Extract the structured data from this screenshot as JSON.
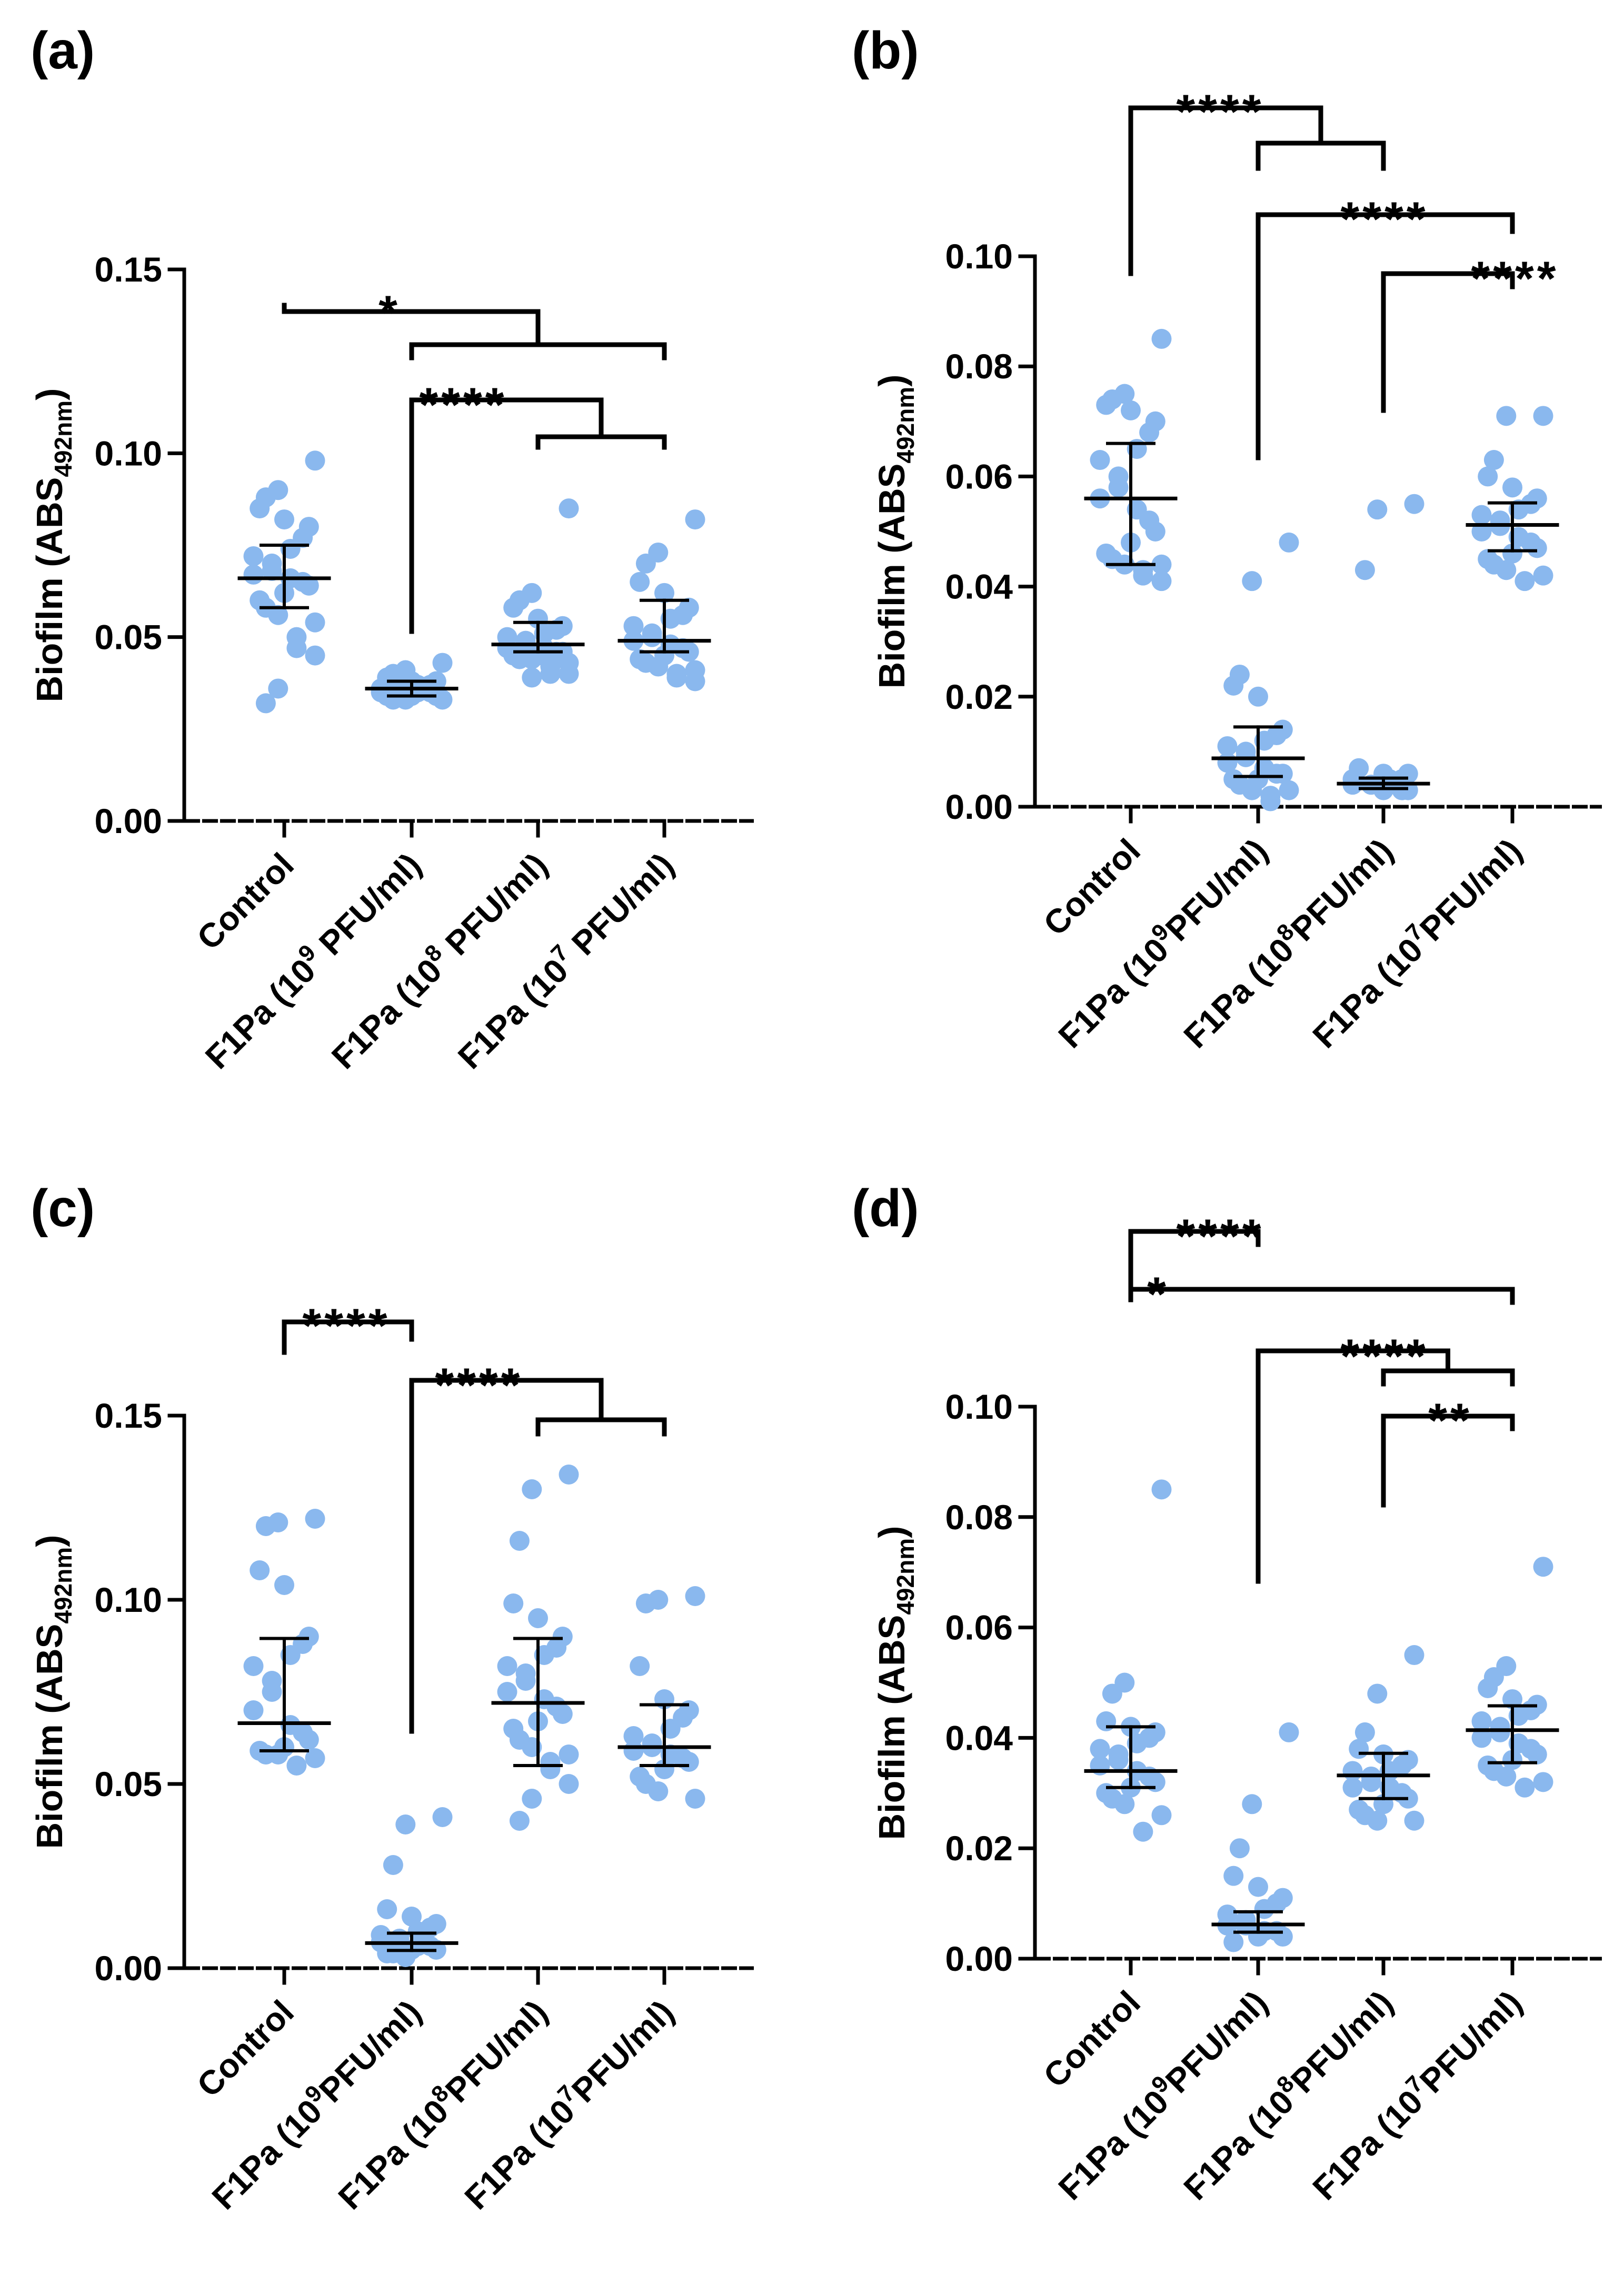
{
  "figure": {
    "panel_count": 4
  },
  "style": {
    "point_color": "#8ab8ee",
    "line_color": "#000000"
  },
  "chart_data": [
    {
      "type": "scatter",
      "panel_label": "(a)",
      "ylabel_main": "Biofilm (ABS",
      "ylabel_sub": "492nm",
      "ylabel_close": ")",
      "ylim": [
        0,
        0.15
      ],
      "yticks": [
        0,
        0.05,
        0.1,
        0.15
      ],
      "ytick_labels": [
        "0.00",
        "0.05",
        "0.10",
        "0.15"
      ],
      "categories": [
        {
          "pre": "Control",
          "sup": "",
          "post": ""
        },
        {
          "pre": "F1Pa (10",
          "sup": "9",
          "post": " PFU/ml)"
        },
        {
          "pre": "F1Pa (10",
          "sup": "8",
          "post": " PFU/ml)"
        },
        {
          "pre": "F1Pa (10",
          "sup": "7",
          "post": " PFU/ml)"
        }
      ],
      "groups": [
        {
          "values": [
            0.098,
            0.09,
            0.088,
            0.085,
            0.082,
            0.08,
            0.077,
            0.074,
            0.072,
            0.07,
            0.068,
            0.067,
            0.066,
            0.065,
            0.064,
            0.062,
            0.06,
            0.058,
            0.056,
            0.054,
            0.05,
            0.047,
            0.045,
            0.036,
            0.032
          ],
          "mean": 0.066,
          "err_low": 0.058,
          "err_high": 0.075
        },
        {
          "values": [
            0.043,
            0.041,
            0.04,
            0.039,
            0.038,
            0.038,
            0.037,
            0.037,
            0.036,
            0.036,
            0.036,
            0.035,
            0.035,
            0.035,
            0.034,
            0.034,
            0.034,
            0.033,
            0.033,
            0.033
          ],
          "mean": 0.036,
          "err_low": 0.034,
          "err_high": 0.038
        },
        {
          "values": [
            0.085,
            0.062,
            0.06,
            0.058,
            0.055,
            0.053,
            0.052,
            0.051,
            0.05,
            0.049,
            0.048,
            0.047,
            0.047,
            0.046,
            0.046,
            0.045,
            0.045,
            0.044,
            0.044,
            0.043,
            0.042,
            0.04,
            0.04,
            0.039
          ],
          "mean": 0.048,
          "err_low": 0.046,
          "err_high": 0.054
        },
        {
          "values": [
            0.082,
            0.073,
            0.07,
            0.065,
            0.062,
            0.058,
            0.056,
            0.055,
            0.053,
            0.051,
            0.05,
            0.049,
            0.048,
            0.047,
            0.046,
            0.045,
            0.044,
            0.043,
            0.042,
            0.041,
            0.04,
            0.039,
            0.038
          ],
          "mean": 0.049,
          "err_low": 0.046,
          "err_high": 0.06
        }
      ],
      "brackets": [
        {
          "from": 0,
          "to_pair": [
            1,
            3
          ],
          "label": "*"
        },
        {
          "from": 1,
          "to_pair": [
            2,
            3
          ],
          "label": "****"
        }
      ]
    },
    {
      "type": "scatter",
      "panel_label": "(b)",
      "ylabel_main": "Biofilm (ABS",
      "ylabel_sub": "492nm",
      "ylabel_close": ")",
      "ylim": [
        0,
        0.1
      ],
      "yticks": [
        0,
        0.02,
        0.04,
        0.06,
        0.08,
        0.1
      ],
      "ytick_labels": [
        "0.00",
        "0.02",
        "0.04",
        "0.06",
        "0.08",
        "0.10"
      ],
      "categories": [
        {
          "pre": "Control",
          "sup": "",
          "post": ""
        },
        {
          "pre": "F1Pa (10",
          "sup": "9",
          "post": "PFU/ml)"
        },
        {
          "pre": "F1Pa (10",
          "sup": "8",
          "post": "PFU/ml)"
        },
        {
          "pre": "F1Pa (10",
          "sup": "7",
          "post": "PFU/ml)"
        }
      ],
      "groups": [
        {
          "values": [
            0.085,
            0.075,
            0.074,
            0.073,
            0.072,
            0.07,
            0.068,
            0.065,
            0.063,
            0.06,
            0.058,
            0.056,
            0.054,
            0.052,
            0.05,
            0.048,
            0.046,
            0.045,
            0.044,
            0.044,
            0.043,
            0.042,
            0.041
          ],
          "mean": 0.056,
          "err_low": 0.044,
          "err_high": 0.066
        },
        {
          "values": [
            0.048,
            0.041,
            0.024,
            0.022,
            0.02,
            0.014,
            0.013,
            0.012,
            0.011,
            0.01,
            0.009,
            0.008,
            0.007,
            0.006,
            0.006,
            0.005,
            0.005,
            0.004,
            0.003,
            0.003,
            0.002,
            0.001
          ],
          "mean": 0.0088,
          "err_low": 0.0055,
          "err_high": 0.0145
        },
        {
          "values": [
            0.055,
            0.054,
            0.043,
            0.007,
            0.006,
            0.006,
            0.005,
            0.005,
            0.005,
            0.004,
            0.004,
            0.004,
            0.004,
            0.003,
            0.003,
            0.003
          ],
          "mean": 0.0042,
          "err_low": 0.0033,
          "err_high": 0.0052
        },
        {
          "values": [
            0.071,
            0.071,
            0.063,
            0.06,
            0.058,
            0.056,
            0.055,
            0.054,
            0.053,
            0.052,
            0.051,
            0.05,
            0.049,
            0.048,
            0.047,
            0.046,
            0.045,
            0.044,
            0.043,
            0.042,
            0.041
          ],
          "mean": 0.0512,
          "err_low": 0.0465,
          "err_high": 0.0552
        }
      ],
      "brackets": [
        {
          "from": 0,
          "to_pair": [
            1,
            2
          ],
          "label": "****"
        },
        {
          "from": 1,
          "to_single": 3,
          "label": "****"
        },
        {
          "from": 2,
          "to_single": 3,
          "label": "****"
        }
      ]
    },
    {
      "type": "scatter",
      "panel_label": "(c)",
      "ylabel_main": "Biofilm (ABS",
      "ylabel_sub": "492nm",
      "ylabel_close": ")",
      "ylim": [
        0,
        0.15
      ],
      "yticks": [
        0,
        0.05,
        0.1,
        0.15
      ],
      "ytick_labels": [
        "0.00",
        "0.05",
        "0.10",
        "0.15"
      ],
      "categories": [
        {
          "pre": "Control",
          "sup": "",
          "post": ""
        },
        {
          "pre": "F1Pa (10",
          "sup": "9",
          "post": "PFU/ml)"
        },
        {
          "pre": "F1Pa (10",
          "sup": "8",
          "post": "PFU/ml)"
        },
        {
          "pre": "F1Pa (10",
          "sup": "7",
          "post": "PFU/ml)"
        }
      ],
      "groups": [
        {
          "values": [
            0.122,
            0.121,
            0.12,
            0.108,
            0.104,
            0.09,
            0.088,
            0.085,
            0.082,
            0.078,
            0.075,
            0.07,
            0.066,
            0.064,
            0.062,
            0.06,
            0.059,
            0.058,
            0.058,
            0.057,
            0.055
          ],
          "mean": 0.0665,
          "err_low": 0.059,
          "err_high": 0.0895
        },
        {
          "values": [
            0.041,
            0.039,
            0.028,
            0.016,
            0.014,
            0.012,
            0.011,
            0.01,
            0.009,
            0.008,
            0.007,
            0.007,
            0.006,
            0.006,
            0.005,
            0.005,
            0.004,
            0.004,
            0.003
          ],
          "mean": 0.0068,
          "err_low": 0.0048,
          "err_high": 0.0095
        },
        {
          "values": [
            0.134,
            0.13,
            0.116,
            0.099,
            0.095,
            0.09,
            0.087,
            0.085,
            0.082,
            0.08,
            0.078,
            0.075,
            0.073,
            0.071,
            0.069,
            0.067,
            0.065,
            0.062,
            0.06,
            0.058,
            0.056,
            0.054,
            0.05,
            0.046,
            0.04
          ],
          "mean": 0.072,
          "err_low": 0.055,
          "err_high": 0.0895
        },
        {
          "values": [
            0.101,
            0.1,
            0.099,
            0.082,
            0.073,
            0.07,
            0.068,
            0.065,
            0.063,
            0.061,
            0.06,
            0.059,
            0.058,
            0.057,
            0.056,
            0.054,
            0.052,
            0.05,
            0.048,
            0.046
          ],
          "mean": 0.06,
          "err_low": 0.055,
          "err_high": 0.0715
        }
      ],
      "brackets": [
        {
          "from": 0,
          "to_single": 1,
          "label": "****"
        },
        {
          "from": 1,
          "to_pair": [
            2,
            3
          ],
          "label": "****"
        }
      ]
    },
    {
      "type": "scatter",
      "panel_label": "(d)",
      "ylabel_main": "Biofilm (ABS",
      "ylabel_sub": "492nm",
      "ylabel_close": ")",
      "ylim": [
        0,
        0.1
      ],
      "yticks": [
        0,
        0.02,
        0.04,
        0.06,
        0.08,
        0.1
      ],
      "ytick_labels": [
        "0.00",
        "0.02",
        "0.04",
        "0.06",
        "0.08",
        "0.10"
      ],
      "categories": [
        {
          "pre": "Control",
          "sup": "",
          "post": ""
        },
        {
          "pre": "F1Pa (10",
          "sup": "9",
          "post": "PFU/ml)"
        },
        {
          "pre": "F1Pa (10",
          "sup": "8",
          "post": "PFU/ml)"
        },
        {
          "pre": "F1Pa (10",
          "sup": "7",
          "post": "PFU/ml)"
        }
      ],
      "groups": [
        {
          "values": [
            0.085,
            0.05,
            0.048,
            0.043,
            0.042,
            0.041,
            0.04,
            0.039,
            0.038,
            0.037,
            0.036,
            0.035,
            0.034,
            0.033,
            0.032,
            0.031,
            0.03,
            0.029,
            0.028,
            0.026,
            0.023
          ],
          "mean": 0.034,
          "err_low": 0.031,
          "err_high": 0.042
        },
        {
          "values": [
            0.041,
            0.028,
            0.02,
            0.015,
            0.013,
            0.011,
            0.01,
            0.009,
            0.008,
            0.007,
            0.006,
            0.006,
            0.005,
            0.005,
            0.004,
            0.004,
            0.003
          ],
          "mean": 0.0062,
          "err_low": 0.0048,
          "err_high": 0.0085
        },
        {
          "values": [
            0.055,
            0.048,
            0.041,
            0.038,
            0.037,
            0.036,
            0.035,
            0.034,
            0.034,
            0.033,
            0.032,
            0.031,
            0.031,
            0.03,
            0.029,
            0.028,
            0.027,
            0.026,
            0.025,
            0.025
          ],
          "mean": 0.0332,
          "err_low": 0.029,
          "err_high": 0.0372
        },
        {
          "values": [
            0.071,
            0.053,
            0.051,
            0.049,
            0.047,
            0.046,
            0.045,
            0.044,
            0.043,
            0.042,
            0.041,
            0.04,
            0.039,
            0.038,
            0.037,
            0.036,
            0.035,
            0.034,
            0.033,
            0.032,
            0.031
          ],
          "mean": 0.0414,
          "err_low": 0.0355,
          "err_high": 0.0458
        }
      ],
      "brackets": [
        {
          "from": 0,
          "to_single": 1,
          "label": "****"
        },
        {
          "from": 0,
          "to_single": 3,
          "label": "*"
        },
        {
          "from": 1,
          "to_pair": [
            2,
            3
          ],
          "label": "****"
        },
        {
          "from": 2,
          "to_single": 3,
          "label": "**"
        }
      ]
    }
  ]
}
